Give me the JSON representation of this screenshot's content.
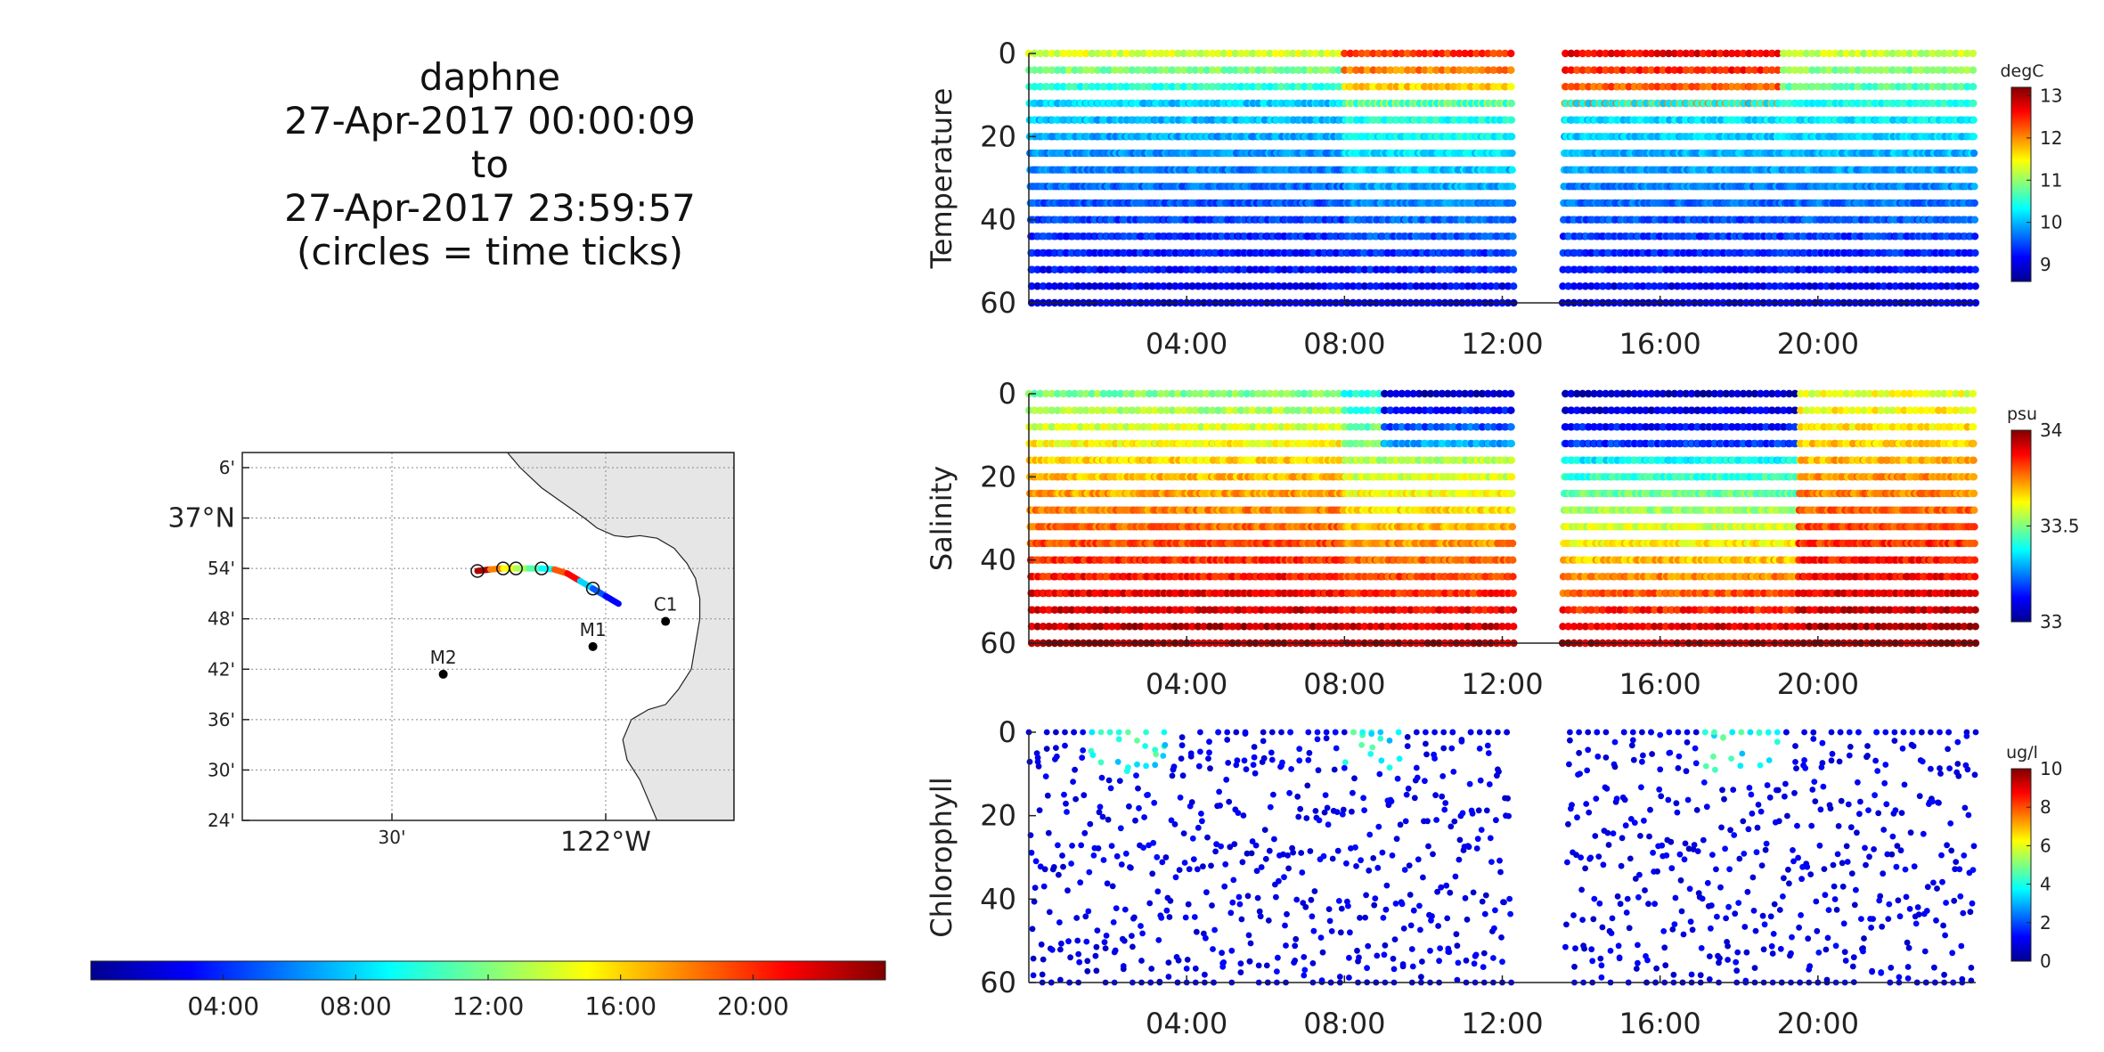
{
  "title": {
    "lines": [
      "daphne",
      "27-Apr-2017 00:00:09",
      "to",
      "27-Apr-2017 23:59:57",
      "(circles = time ticks)"
    ]
  },
  "colors": {
    "jet": [
      "#00008f",
      "#0000ff",
      "#0080ff",
      "#00ffff",
      "#80ff80",
      "#ffff00",
      "#ff8000",
      "#ff0000",
      "#800000"
    ],
    "land": "#e6e6e6",
    "station": "#000000"
  },
  "chart_data": [
    {
      "type": "scatter",
      "name": "map",
      "xlabels": [
        "30'",
        "122°W"
      ],
      "x_ticks": [
        -122.5,
        -122.0
      ],
      "xlim": [
        -122.85,
        -121.7
      ],
      "ylabels": [
        "24'",
        "30'",
        "36'",
        "42'",
        "48'",
        "54'",
        "37°N",
        "6'"
      ],
      "y_ticks": [
        36.4,
        36.5,
        36.6,
        36.7,
        36.8,
        36.9,
        37.0,
        37.1
      ],
      "ylim": [
        36.4,
        37.13
      ],
      "grid": true,
      "stations": [
        {
          "label": "M2",
          "lon": -122.38,
          "lat": 36.69
        },
        {
          "label": "M1",
          "lon": -122.03,
          "lat": 36.745
        },
        {
          "label": "C1",
          "lon": -121.86,
          "lat": 36.795
        }
      ],
      "track": {
        "lon": [
          -122.3,
          -122.27,
          -122.24,
          -122.21,
          -122.18,
          -122.15,
          -122.12,
          -122.09,
          -122.06,
          -122.03,
          -122.0,
          -121.97
        ],
        "lat": [
          36.895,
          36.898,
          36.9,
          36.9,
          36.9,
          36.9,
          36.898,
          36.89,
          36.875,
          36.86,
          36.845,
          36.83
        ],
        "hour": [
          23,
          18,
          15,
          13,
          11,
          9,
          19,
          21,
          8,
          5,
          3,
          1
        ]
      }
    },
    {
      "type": "colorbar",
      "name": "time-colorbar",
      "tick_labels": [
        "04:00",
        "08:00",
        "12:00",
        "16:00",
        "20:00"
      ],
      "ticks": [
        4,
        8,
        12,
        16,
        20
      ],
      "range": [
        0,
        24
      ]
    },
    {
      "type": "scatter",
      "name": "temperature",
      "ylabel": "Temperature",
      "unit": "degC",
      "ylim": [
        0,
        60
      ],
      "y_ticks": [
        0,
        20,
        40,
        60
      ],
      "y_reversed": true,
      "xlim": [
        0,
        24
      ],
      "x_ticks": [
        4,
        8,
        12,
        16,
        20
      ],
      "x_tick_labels": [
        "04:00",
        "08:00",
        "12:00",
        "16:00",
        "20:00"
      ],
      "clim": [
        8.6,
        13.2
      ],
      "cticks": [
        9,
        10,
        11,
        12,
        13
      ],
      "gap": [
        12.3,
        13.5
      ]
    },
    {
      "type": "scatter",
      "name": "salinity",
      "ylabel": "Salinity",
      "unit": "psu",
      "ylim": [
        0,
        60
      ],
      "y_ticks": [
        0,
        20,
        40,
        60
      ],
      "y_reversed": true,
      "xlim": [
        0,
        24
      ],
      "x_ticks": [
        4,
        8,
        12,
        16,
        20
      ],
      "x_tick_labels": [
        "04:00",
        "08:00",
        "12:00",
        "16:00",
        "20:00"
      ],
      "clim": [
        33,
        34
      ],
      "cticks": [
        33,
        33.5,
        34
      ],
      "gap": [
        12.3,
        13.5
      ]
    },
    {
      "type": "scatter",
      "name": "chlorophyll",
      "ylabel": "Chlorophyll",
      "unit": "ug/l",
      "ylim": [
        0,
        60
      ],
      "y_ticks": [
        0,
        20,
        40,
        60
      ],
      "y_reversed": true,
      "xlim": [
        0,
        24
      ],
      "x_ticks": [
        4,
        8,
        12,
        16,
        20
      ],
      "x_tick_labels": [
        "04:00",
        "08:00",
        "12:00",
        "16:00",
        "20:00"
      ],
      "clim": [
        0,
        10
      ],
      "cticks": [
        0,
        2,
        4,
        6,
        8,
        10
      ],
      "gap": [
        12.3,
        13.5
      ]
    }
  ]
}
